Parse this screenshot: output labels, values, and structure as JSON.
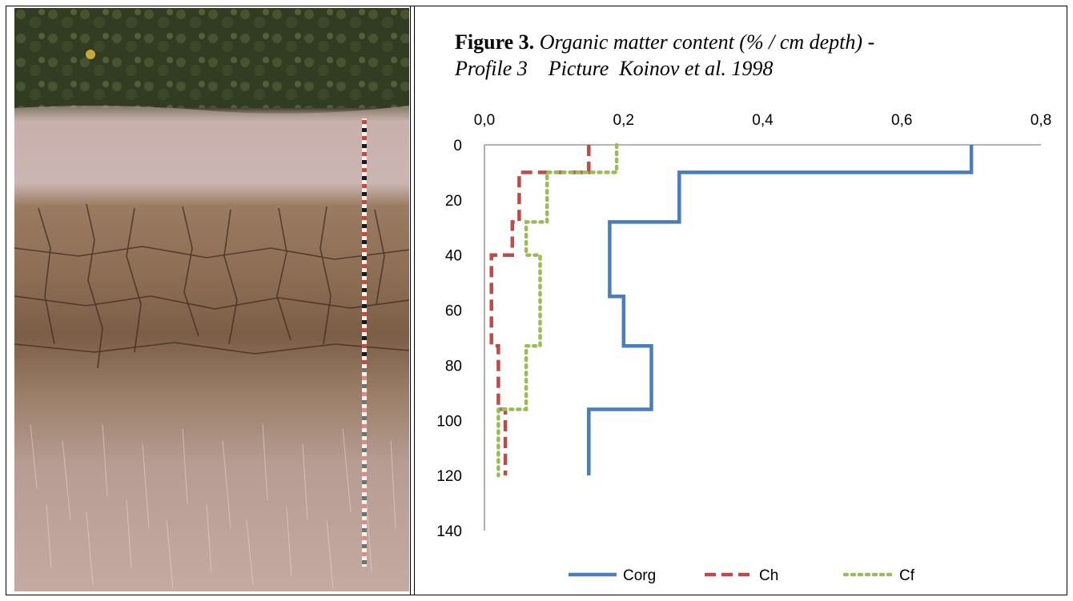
{
  "caption": {
    "label": "Figure 3.",
    "text_line1": " Organic matter content (% / cm depth)   -",
    "text_line2": "Profile 3    Picture  Koinov et al. 1998"
  },
  "chart_data": {
    "type": "line",
    "x_axis_position": "top",
    "y_axis_inverted": true,
    "xlim": [
      0,
      0.8
    ],
    "ylim": [
      0,
      140
    ],
    "x_tick_labels": [
      "0,0",
      "0,2",
      "0,4",
      "0,6",
      "0,8"
    ],
    "x_ticks": [
      0,
      0.2,
      0.4,
      0.6,
      0.8
    ],
    "y_tick_labels": [
      "0",
      "20",
      "40",
      "60",
      "80",
      "100",
      "120",
      "140"
    ],
    "y_ticks": [
      0,
      20,
      40,
      60,
      80,
      100,
      120,
      140
    ],
    "grid": false,
    "legend_position": "bottom",
    "series": [
      {
        "name": "Corg",
        "color": "#4a7ebb",
        "style": "solid",
        "points": [
          [
            0.7,
            0
          ],
          [
            0.7,
            10
          ],
          [
            0.28,
            10
          ],
          [
            0.28,
            28
          ],
          [
            0.18,
            28
          ],
          [
            0.18,
            55
          ],
          [
            0.2,
            55
          ],
          [
            0.2,
            73
          ],
          [
            0.24,
            73
          ],
          [
            0.24,
            96
          ],
          [
            0.15,
            96
          ],
          [
            0.15,
            120
          ]
        ]
      },
      {
        "name": "Ch",
        "color": "#be4b48",
        "style": "dashed",
        "points": [
          [
            0.15,
            0
          ],
          [
            0.15,
            10
          ],
          [
            0.05,
            10
          ],
          [
            0.05,
            28
          ],
          [
            0.04,
            28
          ],
          [
            0.04,
            40
          ],
          [
            0.01,
            40
          ],
          [
            0.01,
            73
          ],
          [
            0.02,
            73
          ],
          [
            0.02,
            96
          ],
          [
            0.03,
            96
          ],
          [
            0.03,
            120
          ]
        ]
      },
      {
        "name": "Cf",
        "color": "#9bbb59",
        "style": "dotted",
        "points": [
          [
            0.19,
            0
          ],
          [
            0.19,
            10
          ],
          [
            0.09,
            10
          ],
          [
            0.09,
            28
          ],
          [
            0.06,
            28
          ],
          [
            0.06,
            40
          ],
          [
            0.08,
            40
          ],
          [
            0.08,
            73
          ],
          [
            0.06,
            73
          ],
          [
            0.06,
            96
          ],
          [
            0.02,
            96
          ],
          [
            0.02,
            120
          ]
        ]
      }
    ]
  },
  "photo": {
    "description_icon": "soil-profile-photo"
  }
}
